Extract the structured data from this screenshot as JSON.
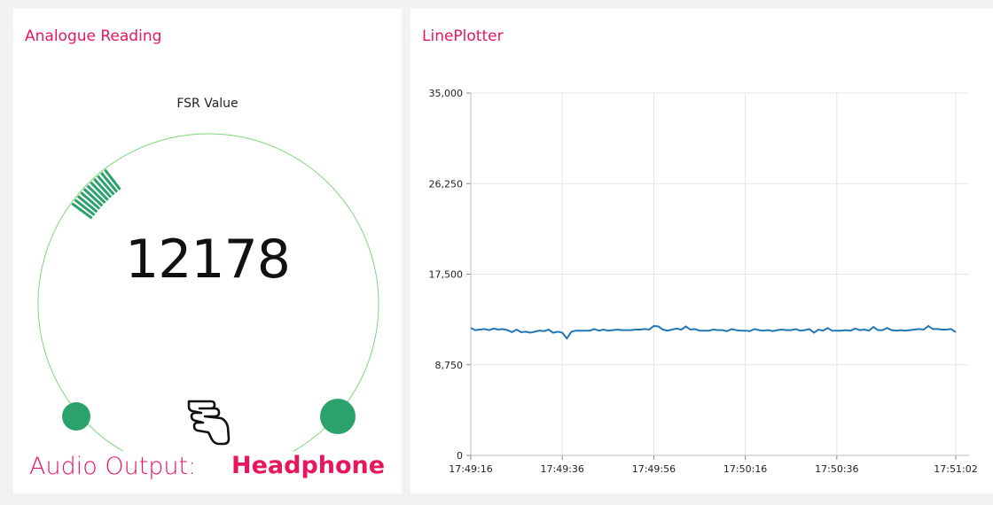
{
  "gauge_card": {
    "title": "Analogue Reading",
    "gauge_label": "FSR Value",
    "gauge_value": "12178",
    "value": 12178,
    "min_value": 0,
    "max_value": 35000,
    "colors": {
      "arc": "#7ed67a",
      "needle": "#2ba26b",
      "knob": "#2ba26b",
      "value_text": "#111111"
    },
    "icon": "hand-pointing-icon",
    "audio_output_label": "Audio Output:",
    "audio_output_value": "Headphone",
    "accent_color": "#e8175d"
  },
  "chart_card": {
    "title": "LinePlotter",
    "chart_data": {
      "type": "line",
      "title": "",
      "xlabel": "",
      "ylabel": "",
      "ylim": [
        0,
        35000
      ],
      "y_ticks": [
        "0",
        "8,750",
        "17,500",
        "26,250",
        "35,000"
      ],
      "y_tick_values": [
        0,
        8750,
        17500,
        26250,
        35000
      ],
      "x_ticks": [
        "17:49:16",
        "17:49:36",
        "17:49:56",
        "17:50:16",
        "17:50:36",
        "17:51:02"
      ],
      "x_tick_seconds": [
        0,
        20,
        40,
        60,
        80,
        106
      ],
      "grid": true,
      "legend": "none",
      "series_color": "#1f77b4",
      "series": [
        {
          "x": [
            0,
            1,
            2,
            3,
            4,
            5,
            6,
            7,
            8,
            9,
            10,
            11,
            12,
            13,
            14,
            15,
            16,
            17,
            18,
            19,
            20,
            21,
            22,
            23,
            24,
            25,
            26,
            27,
            28,
            29,
            30,
            31,
            32,
            33,
            34,
            35,
            36,
            37,
            38,
            39,
            40,
            41,
            42,
            43,
            44,
            45,
            46,
            47,
            48,
            49,
            50,
            51,
            52,
            53,
            54,
            55,
            56,
            57,
            58,
            59,
            60,
            61,
            62,
            63,
            64,
            65,
            66,
            67,
            68,
            69,
            70,
            71,
            72,
            73,
            74,
            75,
            76,
            77,
            78,
            79,
            80,
            81,
            82,
            83,
            84,
            85,
            86,
            87,
            88,
            89,
            90,
            91,
            92,
            93,
            94,
            95,
            96,
            97,
            98,
            99,
            100,
            101,
            102,
            103,
            104,
            105,
            106
          ],
          "y": [
            12300,
            12100,
            12150,
            12200,
            12100,
            12250,
            12150,
            12200,
            12100,
            11900,
            12150,
            11900,
            11950,
            11850,
            11950,
            12050,
            12000,
            12150,
            11850,
            11950,
            11850,
            11300,
            11950,
            12050,
            12050,
            12050,
            12050,
            12200,
            12050,
            12150,
            12050,
            12100,
            12150,
            12100,
            12100,
            12100,
            12150,
            12150,
            12200,
            12150,
            12500,
            12450,
            12150,
            12050,
            12150,
            12250,
            12150,
            12450,
            12150,
            12200,
            12050,
            12050,
            12050,
            12150,
            12100,
            12100,
            12000,
            12200,
            12100,
            12050,
            12050,
            12000,
            12200,
            12100,
            12050,
            12100,
            12000,
            12100,
            12150,
            12100,
            12100,
            12200,
            12050,
            12100,
            12200,
            11850,
            12150,
            12050,
            12300,
            12050,
            12050,
            12050,
            12100,
            12050,
            12250,
            12100,
            12150,
            12050,
            12400,
            12100,
            12100,
            12300,
            12100,
            12050,
            12100,
            12050,
            12100,
            12150,
            12200,
            12150,
            12500,
            12200,
            12200,
            12150,
            12150,
            12200,
            11900
          ]
        }
      ]
    }
  }
}
